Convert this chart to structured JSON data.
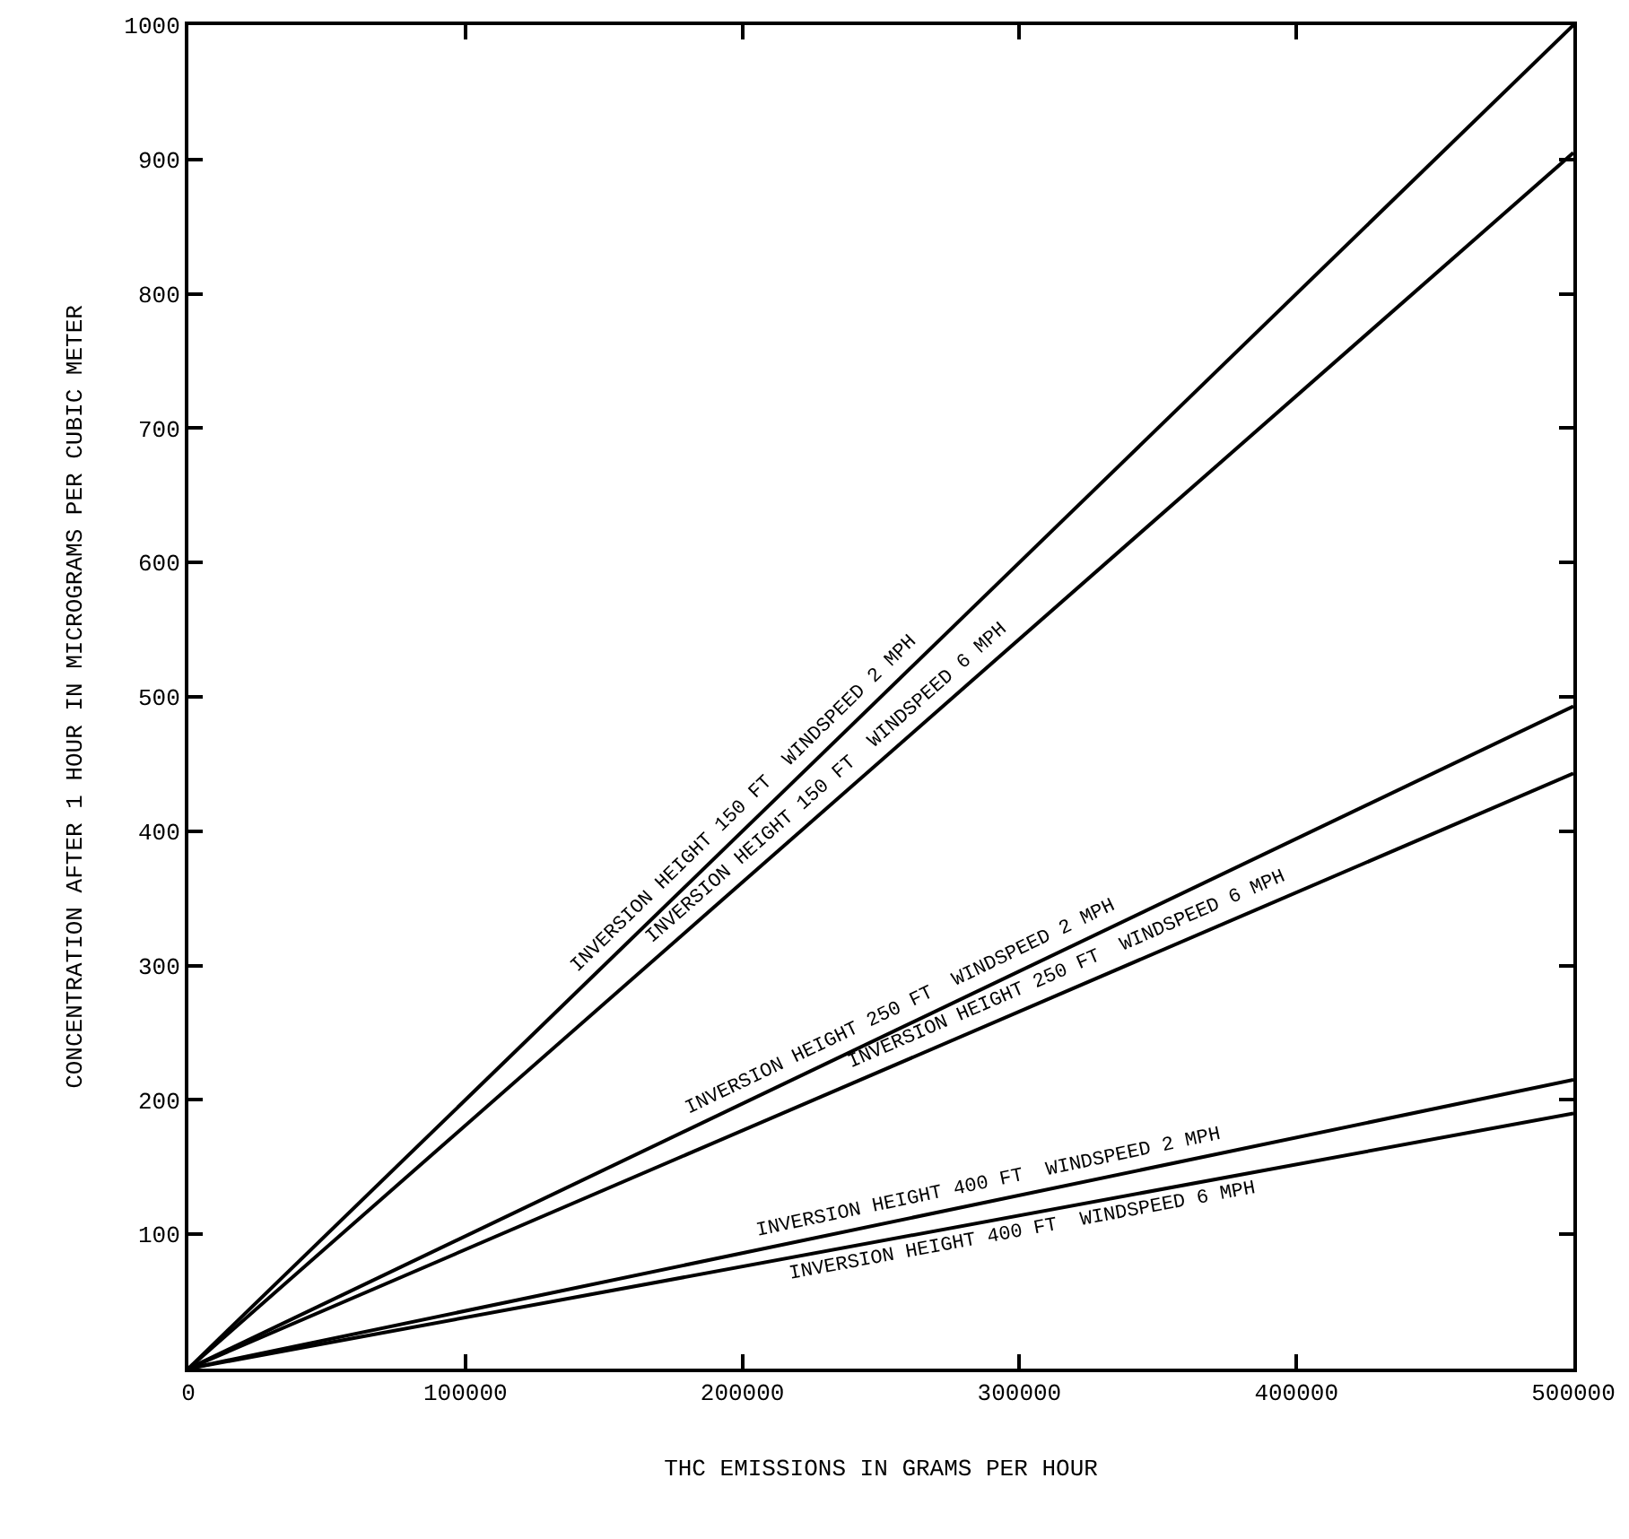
{
  "chart_data": {
    "type": "line",
    "xlabel": "THC EMISSIONS IN GRAMS PER HOUR",
    "ylabel": "CONCENTRATION AFTER 1 HOUR IN MICROGRAMS PER CUBIC METER",
    "x": [
      0,
      500000
    ],
    "series": [
      {
        "color": "#000000",
        "values": [
          0,
          1000
        ]
      },
      {
        "color": "#000000",
        "values": [
          0,
          905
        ]
      },
      {
        "color": "#000000",
        "values": [
          0,
          493
        ]
      },
      {
        "color": "#000000",
        "values": [
          0,
          443
        ]
      },
      {
        "color": "#000000",
        "values": [
          0,
          215
        ]
      },
      {
        "color": "#000000",
        "values": [
          0,
          190
        ]
      }
    ],
    "annotations": [
      "INVERSION HEIGHT 150 FT  WINDSPEED 2 MPH",
      "INVERSION HEIGHT 150 FT  WINDSPEED 6 MPH",
      "INVERSION HEIGHT 250 FT  WINDSPEED 2 MPH",
      "INVERSION HEIGHT 250 FT  WINDSPEED 6 MPH",
      "INVERSION HEIGHT 400 FT  WINDSPEED 2 MPH",
      "INVERSION HEIGHT 400 FT  WINDSPEED 6 MPH"
    ],
    "xlim": [
      0,
      500000
    ],
    "ylim": [
      0,
      1000
    ],
    "xticks": [
      0,
      100000,
      200000,
      300000,
      400000,
      500000
    ],
    "yticks": [
      100,
      200,
      300,
      400,
      500,
      600,
      700,
      800,
      900,
      1000
    ],
    "marker": "none",
    "line_style": "solid"
  }
}
